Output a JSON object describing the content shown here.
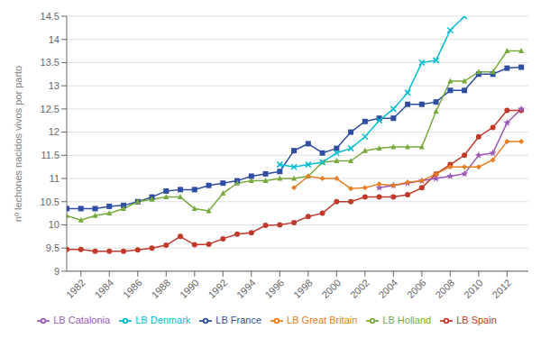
{
  "chart_data": {
    "type": "line",
    "ylabel": "nº lechones nacidos vivos por parto",
    "x": [
      1981,
      1982,
      1983,
      1984,
      1985,
      1986,
      1987,
      1988,
      1989,
      1990,
      1991,
      1992,
      1993,
      1994,
      1995,
      1996,
      1997,
      1998,
      1999,
      2000,
      2001,
      2002,
      2003,
      2004,
      2005,
      2006,
      2007,
      2008,
      2009,
      2010,
      2011,
      2012,
      2013
    ],
    "xlim": [
      1981,
      2013.5
    ],
    "xticks": [
      1982,
      1984,
      1986,
      1988,
      1990,
      1992,
      1994,
      1996,
      1998,
      2000,
      2002,
      2004,
      2006,
      2008,
      2010,
      2012
    ],
    "ylim": [
      9,
      14.5
    ],
    "yticks": [
      9,
      9.5,
      10,
      10.5,
      11,
      11.5,
      12,
      12.5,
      13,
      13.5,
      14,
      14.5
    ],
    "grid": true,
    "legend": "bottom",
    "series": [
      {
        "name": "LB Spain",
        "color": "#c0392b",
        "marker": "circle",
        "values": [
          9.47,
          9.47,
          9.43,
          9.43,
          9.43,
          9.46,
          9.5,
          9.56,
          9.75,
          9.57,
          9.58,
          9.7,
          9.8,
          9.83,
          9.99,
          10.0,
          10.05,
          10.18,
          10.25,
          10.5,
          10.5,
          10.6,
          10.6,
          10.6,
          10.65,
          10.8,
          11.1,
          11.3,
          11.5,
          11.9,
          12.1,
          12.47,
          12.47
        ]
      },
      {
        "name": "LB France",
        "color": "#2e4ea2",
        "marker": "square",
        "values": [
          10.35,
          10.35,
          10.35,
          10.4,
          10.42,
          10.5,
          10.6,
          10.73,
          10.76,
          10.76,
          10.85,
          10.9,
          10.95,
          11.05,
          11.1,
          11.15,
          11.6,
          11.75,
          11.55,
          11.65,
          12.0,
          12.23,
          12.3,
          12.3,
          12.6,
          12.6,
          12.65,
          12.9,
          12.9,
          13.25,
          13.25,
          13.38,
          13.4
        ]
      },
      {
        "name": "LB Holland",
        "color": "#76aa3b",
        "marker": "triangle",
        "values": [
          10.2,
          10.1,
          10.2,
          10.25,
          10.35,
          10.5,
          10.55,
          10.6,
          10.6,
          10.35,
          10.3,
          10.68,
          10.9,
          10.95,
          10.95,
          11.0,
          11.0,
          11.05,
          11.35,
          11.38,
          11.38,
          11.6,
          11.65,
          11.68,
          11.68,
          11.68,
          12.45,
          13.1,
          13.1,
          13.3,
          13.3,
          13.75,
          13.75
        ]
      },
      {
        "name": "LB Catalonia",
        "color": "#9b59b6",
        "marker": "star",
        "values": [
          null,
          null,
          null,
          null,
          null,
          null,
          null,
          null,
          null,
          null,
          null,
          null,
          null,
          null,
          null,
          null,
          null,
          null,
          null,
          null,
          null,
          null,
          10.8,
          10.85,
          10.9,
          10.95,
          11.0,
          11.05,
          11.1,
          11.5,
          11.55,
          12.2,
          12.5
        ]
      },
      {
        "name": "LB Denmark",
        "color": "#00bcd4",
        "marker": "x",
        "values": [
          null,
          null,
          null,
          null,
          null,
          null,
          null,
          null,
          null,
          null,
          null,
          null,
          null,
          null,
          null,
          11.3,
          11.25,
          11.3,
          11.35,
          11.55,
          11.65,
          11.9,
          12.25,
          12.5,
          12.85,
          13.5,
          13.55,
          14.2,
          14.5,
          null,
          null,
          null,
          null
        ]
      },
      {
        "name": "LB Great Britain",
        "color": "#e67e22",
        "marker": "diamond",
        "values": [
          null,
          null,
          null,
          null,
          null,
          null,
          null,
          null,
          null,
          null,
          null,
          null,
          null,
          null,
          null,
          null,
          10.8,
          11.05,
          11.0,
          11.0,
          10.78,
          10.8,
          10.88,
          10.85,
          10.92,
          10.95,
          11.1,
          11.25,
          11.25,
          11.25,
          11.4,
          11.8,
          11.8
        ]
      }
    ]
  }
}
